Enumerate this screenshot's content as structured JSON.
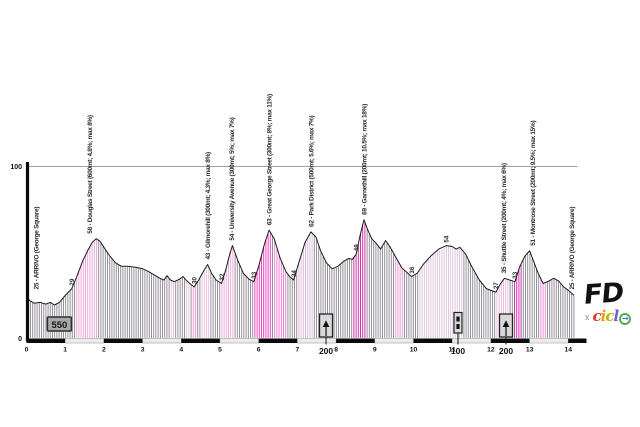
{
  "chart_data": {
    "type": "area",
    "title": "",
    "x_axis": {
      "unit": "km",
      "ticks": [
        0,
        1,
        2,
        3,
        4,
        5,
        6,
        7,
        8,
        9,
        10,
        11,
        12,
        13,
        14
      ],
      "range": [
        0,
        14.47
      ]
    },
    "y_axis": {
      "ticks": [
        0,
        100
      ],
      "range": [
        0,
        105
      ],
      "gridline_at": 100
    },
    "terminals": [
      {
        "km": 0.25,
        "elevation": 25,
        "label": "25 - ARRIVO (George Square)"
      },
      {
        "km": 14.08,
        "elevation": 25,
        "label": "25 - ARRIVO (George Square)"
      }
    ],
    "climbs": [
      {
        "km": 1.63,
        "peak_elevation": 58,
        "label": "58 - Douglas Street (600mt; 4.8%; max 8%)"
      },
      {
        "km": 4.68,
        "peak_elevation": 43,
        "label": "43 - Gilmorehill (300mt; 4.3%; max 8%)"
      },
      {
        "km": 5.3,
        "peak_elevation": 54,
        "label": "54 - University Avenue (300mt; 5%; max 7%)"
      },
      {
        "km": 6.27,
        "peak_elevation": 63,
        "label": "63 - Great George Street (300mt; 8%; max 11%)"
      },
      {
        "km": 7.35,
        "peak_elevation": 62,
        "label": "62 - Park District (500mt; 5.6%; max 7%)"
      },
      {
        "km": 8.72,
        "peak_elevation": 69,
        "label": "69 - Garnethill (200mt; 10.5%; max 18%)"
      },
      {
        "km": 12.33,
        "peak_elevation": 35,
        "label": "35 - Shuttle Street (200mt; 4%; max 6%)"
      },
      {
        "km": 13.08,
        "peak_elevation": 51,
        "label": "51 - Montrose Street (200mt; 9.5%; max 15%)"
      }
    ],
    "spot_elevations": [
      {
        "km": 1.17,
        "value": "29"
      },
      {
        "km": 4.33,
        "value": "30"
      },
      {
        "km": 5.04,
        "value": "32"
      },
      {
        "km": 5.87,
        "value": "33"
      },
      {
        "km": 6.9,
        "value": "34"
      },
      {
        "km": 8.52,
        "value": "49"
      },
      {
        "km": 9.95,
        "value": "36"
      },
      {
        "km": 10.85,
        "value": "54"
      },
      {
        "km": 12.13,
        "value": "27"
      },
      {
        "km": 12.62,
        "value": "33"
      }
    ],
    "profile": [
      [
        0,
        25
      ],
      [
        0.08,
        22
      ],
      [
        0.2,
        20.5
      ],
      [
        0.35,
        21
      ],
      [
        0.5,
        20
      ],
      [
        0.62,
        21
      ],
      [
        0.72,
        19.5
      ],
      [
        0.85,
        21
      ],
      [
        1.0,
        25
      ],
      [
        1.17,
        29
      ],
      [
        1.3,
        36
      ],
      [
        1.45,
        45
      ],
      [
        1.58,
        51
      ],
      [
        1.7,
        56
      ],
      [
        1.8,
        58
      ],
      [
        1.9,
        56.5
      ],
      [
        2.0,
        53
      ],
      [
        2.15,
        48
      ],
      [
        2.3,
        44
      ],
      [
        2.45,
        42
      ],
      [
        2.6,
        42
      ],
      [
        2.8,
        41.5
      ],
      [
        3.0,
        40.5
      ],
      [
        3.15,
        39
      ],
      [
        3.3,
        37
      ],
      [
        3.45,
        35
      ],
      [
        3.55,
        34
      ],
      [
        3.63,
        36.5
      ],
      [
        3.72,
        34
      ],
      [
        3.82,
        33
      ],
      [
        3.95,
        34.5
      ],
      [
        4.05,
        36
      ],
      [
        4.12,
        34
      ],
      [
        4.22,
        32
      ],
      [
        4.33,
        30
      ],
      [
        4.45,
        34
      ],
      [
        4.57,
        39
      ],
      [
        4.68,
        43
      ],
      [
        4.78,
        38
      ],
      [
        4.9,
        34
      ],
      [
        5.04,
        32
      ],
      [
        5.15,
        40
      ],
      [
        5.25,
        49
      ],
      [
        5.32,
        54
      ],
      [
        5.45,
        46
      ],
      [
        5.6,
        38
      ],
      [
        5.75,
        34.5
      ],
      [
        5.87,
        33
      ],
      [
        6.0,
        42
      ],
      [
        6.15,
        55
      ],
      [
        6.27,
        63
      ],
      [
        6.4,
        58
      ],
      [
        6.55,
        47
      ],
      [
        6.7,
        39
      ],
      [
        6.8,
        36
      ],
      [
        6.9,
        34
      ],
      [
        7.05,
        45
      ],
      [
        7.2,
        56
      ],
      [
        7.35,
        62
      ],
      [
        7.48,
        59
      ],
      [
        7.6,
        51
      ],
      [
        7.75,
        44
      ],
      [
        7.9,
        40.5
      ],
      [
        8.05,
        42
      ],
      [
        8.2,
        45
      ],
      [
        8.33,
        46.5
      ],
      [
        8.42,
        46
      ],
      [
        8.52,
        49
      ],
      [
        8.62,
        60
      ],
      [
        8.72,
        69
      ],
      [
        8.82,
        63
      ],
      [
        8.92,
        58
      ],
      [
        9.05,
        55
      ],
      [
        9.15,
        52
      ],
      [
        9.28,
        57
      ],
      [
        9.4,
        53
      ],
      [
        9.55,
        47
      ],
      [
        9.7,
        41
      ],
      [
        9.85,
        38
      ],
      [
        9.95,
        36
      ],
      [
        10.1,
        38
      ],
      [
        10.25,
        43
      ],
      [
        10.45,
        48
      ],
      [
        10.65,
        52
      ],
      [
        10.85,
        54
      ],
      [
        11.0,
        53.5
      ],
      [
        11.1,
        52
      ],
      [
        11.2,
        53
      ],
      [
        11.35,
        49
      ],
      [
        11.5,
        42
      ],
      [
        11.7,
        34
      ],
      [
        11.88,
        29
      ],
      [
        12.13,
        27
      ],
      [
        12.25,
        32
      ],
      [
        12.35,
        35
      ],
      [
        12.48,
        34
      ],
      [
        12.62,
        33
      ],
      [
        12.75,
        42
      ],
      [
        12.88,
        48
      ],
      [
        13.0,
        51
      ],
      [
        13.1,
        45
      ],
      [
        13.22,
        38
      ],
      [
        13.35,
        32
      ],
      [
        13.5,
        33.5
      ],
      [
        13.62,
        35
      ],
      [
        13.75,
        33.5
      ],
      [
        13.88,
        30
      ],
      [
        14.0,
        28
      ],
      [
        14.15,
        25
      ]
    ],
    "gradient_bands": [
      {
        "from": 1.25,
        "to": 1.82,
        "color": "#e79fd6"
      },
      {
        "from": 3.72,
        "to": 3.84,
        "color": "#e6badc"
      },
      {
        "from": 4.12,
        "to": 4.2,
        "color": "#e6badc"
      },
      {
        "from": 4.27,
        "to": 4.42,
        "color": "#ea8fd4"
      },
      {
        "from": 4.5,
        "to": 4.72,
        "color": "#eebbe3"
      },
      {
        "from": 5.0,
        "to": 5.35,
        "color": "#e8a2d9"
      },
      {
        "from": 5.9,
        "to": 6.33,
        "color": "#e832bb"
      },
      {
        "from": 6.36,
        "to": 6.72,
        "color": "#ef78d2"
      },
      {
        "from": 7.0,
        "to": 7.42,
        "color": "#dcb3d8"
      },
      {
        "from": 8.44,
        "to": 8.77,
        "color": "#cf1da2"
      },
      {
        "from": 9.5,
        "to": 9.72,
        "color": "#ee8ad8"
      },
      {
        "from": 10.15,
        "to": 11.28,
        "color": "#dbc0d8"
      },
      {
        "from": 12.15,
        "to": 12.45,
        "color": "#e7b6de"
      },
      {
        "from": 12.6,
        "to": 12.82,
        "color": "#cf1da2"
      },
      {
        "from": 13.28,
        "to": 13.46,
        "color": "#ee86d5"
      }
    ],
    "markers": {
      "distance_box": {
        "km": 0.85,
        "text": "550"
      },
      "monuments": [
        {
          "km": 7.74,
          "label": "200",
          "icon": "arch-icon"
        },
        {
          "km": 11.15,
          "label": "100",
          "icon": "gate-icon"
        },
        {
          "km": 12.39,
          "label": "200",
          "icon": "arch-icon"
        }
      ]
    },
    "legend_position": "none",
    "grid": "single-horizontal-line-at-100"
  },
  "colors": {
    "hatch_default": "#8b8591",
    "outline": "#1a1a1a",
    "gridline": "#a0a0a0",
    "band_dark": "#0b0b0b",
    "band_light": "#ececec",
    "band_light_border": "#8a8a8a",
    "marker_fill": "#d9d9d9",
    "marker_border": "#222222",
    "distance_box_fill": "#a8a8a8",
    "distance_box_border": "#2e2e2e",
    "label_text": "#2a2a2a"
  },
  "logo": {
    "fd": "FD",
    "x_mark": "x",
    "ciclo_letters": [
      "c",
      "i",
      "c",
      "l",
      "o"
    ],
    "ciclo_colors": [
      "#d93a2c",
      "#f09a0c",
      "#b5b50a",
      "#7a55dd",
      "#54ad4c"
    ],
    "ciclo_arrow": "→"
  }
}
